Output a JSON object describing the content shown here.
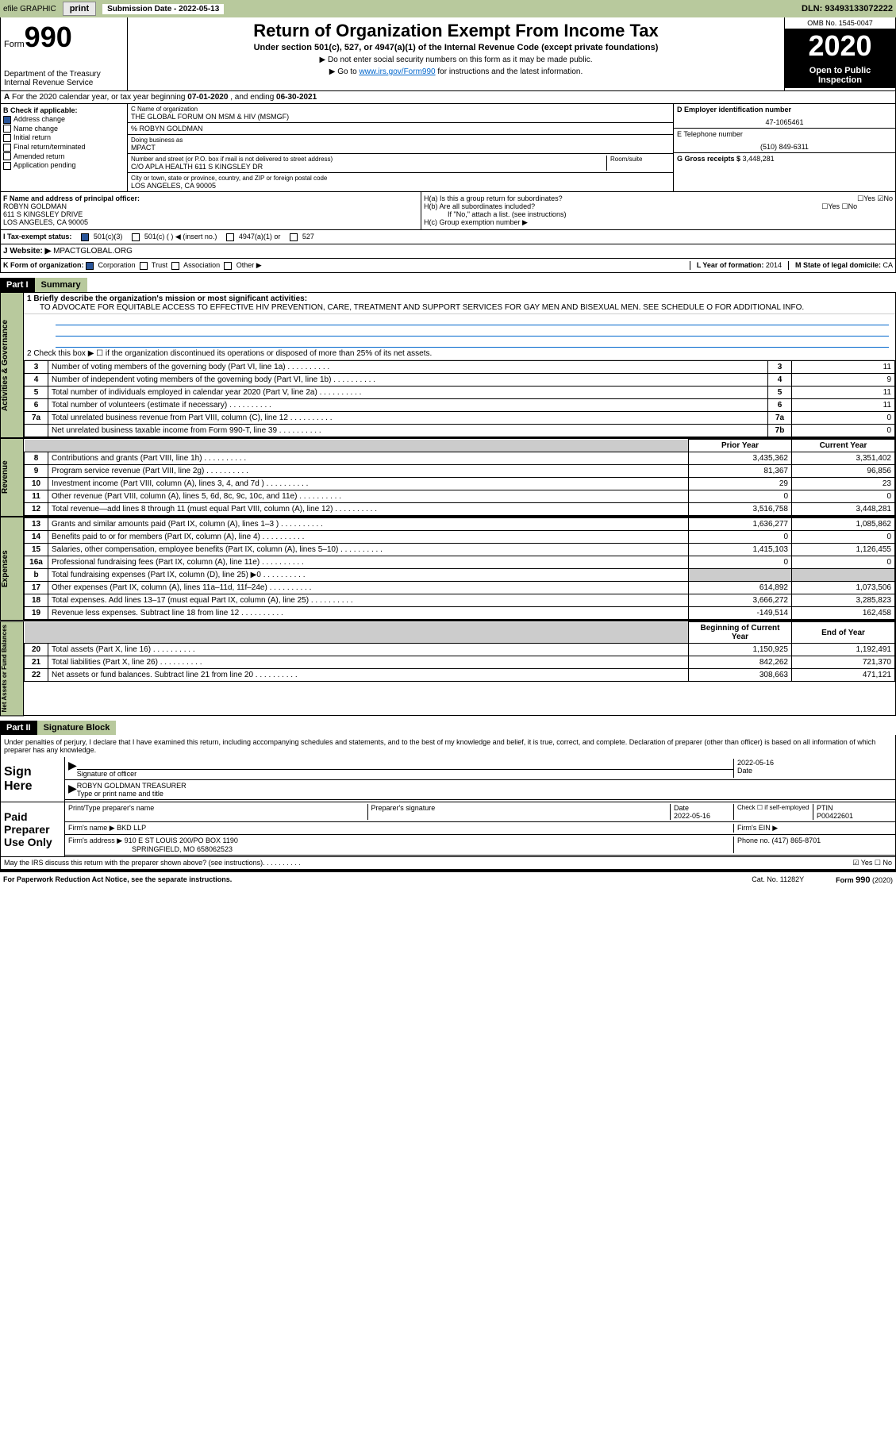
{
  "topbar": {
    "efile": "efile GRAPHIC",
    "print": "print",
    "sub_label": "Submission Date - ",
    "sub_date": "2022-05-13",
    "dln": "DLN: 93493133072222"
  },
  "header": {
    "form_word": "Form",
    "form_num": "990",
    "dept": "Department of the Treasury\nInternal Revenue Service",
    "title": "Return of Organization Exempt From Income Tax",
    "subtitle": "Under section 501(c), 527, or 4947(a)(1) of the Internal Revenue Code (except private foundations)",
    "instr1": "▶ Do not enter social security numbers on this form as it may be made public.",
    "instr2": "▶ Go to ",
    "instr2_link": "www.irs.gov/Form990",
    "instr2_rest": " for instructions and the latest information.",
    "omb": "OMB No. 1545-0047",
    "year": "2020",
    "inspect": "Open to Public Inspection"
  },
  "rowA": {
    "prefix": "A",
    "text": "For the 2020 calendar year, or tax year beginning ",
    "begin": "07-01-2020",
    "mid": " , and ending ",
    "end": "06-30-2021"
  },
  "colB": {
    "title": "B Check if applicable:",
    "opts": [
      "Address change",
      "Name change",
      "Initial return",
      "Final return/terminated",
      "Amended return",
      "Application pending"
    ],
    "checked": [
      true,
      false,
      false,
      false,
      false,
      false
    ]
  },
  "colC": {
    "name_label": "C Name of organization",
    "name": "THE GLOBAL FORUM ON MSM & HIV (MSMGF)",
    "care_of": "% ROBYN GOLDMAN",
    "dba_label": "Doing business as",
    "dba": "MPACT",
    "addr_label": "Number and street (or P.O. box if mail is not delivered to street address)",
    "room_label": "Room/suite",
    "addr": "C/O APLA HEALTH 611 S KINGSLEY DR",
    "city_label": "City or town, state or province, country, and ZIP or foreign postal code",
    "city": "LOS ANGELES, CA  90005"
  },
  "colD": {
    "ein_label": "D Employer identification number",
    "ein": "47-1065461",
    "tel_label": "E Telephone number",
    "tel": "(510) 849-6311",
    "gross_label": "G Gross receipts $ ",
    "gross": "3,448,281"
  },
  "rowF": {
    "label": "F Name and address of principal officer:",
    "name": "ROBYN GOLDMAN",
    "addr1": "611 S KINGSLEY DRIVE",
    "addr2": "LOS ANGELES, CA  90005"
  },
  "rowH": {
    "ha": "H(a)  Is this a group return for subordinates?",
    "hb": "H(b)  Are all subordinates included?",
    "hb_note": "If \"No,\" attach a list. (see instructions)",
    "hc": "H(c)  Group exemption number ▶",
    "yes": "Yes",
    "no": "No"
  },
  "rowI": {
    "label": "I   Tax-exempt status:",
    "opts": [
      "501(c)(3)",
      "501(c) (  ) ◀ (insert no.)",
      "4947(a)(1) or",
      "527"
    ]
  },
  "rowJ": {
    "label": "J   Website: ▶  ",
    "val": "MPACTGLOBAL.ORG"
  },
  "rowK": {
    "label": "K Form of organization:",
    "opts": [
      "Corporation",
      "Trust",
      "Association",
      "Other ▶"
    ],
    "L_label": "L Year of formation: ",
    "L_val": "2014",
    "M_label": "M State of legal domicile: ",
    "M_val": "CA"
  },
  "part1": {
    "hdr": "Part I",
    "title": "Summary",
    "side1": "Activities & Governance",
    "line1": "1  Briefly describe the organization's mission or most significant activities:",
    "mission": "TO ADVOCATE FOR EQUITABLE ACCESS TO EFFECTIVE HIV PREVENTION, CARE, TREATMENT AND SUPPORT SERVICES FOR GAY MEN AND BISEXUAL MEN. SEE SCHEDULE O FOR ADDITIONAL INFO.",
    "line2": "2   Check this box ▶ ☐  if the organization discontinued its operations or disposed of more than 25% of its net assets.",
    "rows_gov": [
      {
        "n": "3",
        "d": "Number of voting members of the governing body (Part VI, line 1a)",
        "k": "3",
        "v": "11"
      },
      {
        "n": "4",
        "d": "Number of independent voting members of the governing body (Part VI, line 1b)",
        "k": "4",
        "v": "9"
      },
      {
        "n": "5",
        "d": "Total number of individuals employed in calendar year 2020 (Part V, line 2a)",
        "k": "5",
        "v": "11"
      },
      {
        "n": "6",
        "d": "Total number of volunteers (estimate if necessary)",
        "k": "6",
        "v": "11"
      },
      {
        "n": "7a",
        "d": "Total unrelated business revenue from Part VIII, column (C), line 12",
        "k": "7a",
        "v": "0"
      },
      {
        "n": "",
        "d": "Net unrelated business taxable income from Form 990-T, line 39",
        "k": "7b",
        "v": "0"
      }
    ],
    "side2": "Revenue",
    "col_prior": "Prior Year",
    "col_curr": "Current Year",
    "rows_rev": [
      {
        "n": "8",
        "d": "Contributions and grants (Part VIII, line 1h)",
        "p": "3,435,362",
        "c": "3,351,402"
      },
      {
        "n": "9",
        "d": "Program service revenue (Part VIII, line 2g)",
        "p": "81,367",
        "c": "96,856"
      },
      {
        "n": "10",
        "d": "Investment income (Part VIII, column (A), lines 3, 4, and 7d )",
        "p": "29",
        "c": "23"
      },
      {
        "n": "11",
        "d": "Other revenue (Part VIII, column (A), lines 5, 6d, 8c, 9c, 10c, and 11e)",
        "p": "0",
        "c": "0"
      },
      {
        "n": "12",
        "d": "Total revenue—add lines 8 through 11 (must equal Part VIII, column (A), line 12)",
        "p": "3,516,758",
        "c": "3,448,281"
      }
    ],
    "side3": "Expenses",
    "rows_exp": [
      {
        "n": "13",
        "d": "Grants and similar amounts paid (Part IX, column (A), lines 1–3 )",
        "p": "1,636,277",
        "c": "1,085,862"
      },
      {
        "n": "14",
        "d": "Benefits paid to or for members (Part IX, column (A), line 4)",
        "p": "0",
        "c": "0"
      },
      {
        "n": "15",
        "d": "Salaries, other compensation, employee benefits (Part IX, column (A), lines 5–10)",
        "p": "1,415,103",
        "c": "1,126,455"
      },
      {
        "n": "16a",
        "d": "Professional fundraising fees (Part IX, column (A), line 11e)",
        "p": "0",
        "c": "0"
      },
      {
        "n": "b",
        "d": "Total fundraising expenses (Part IX, column (D), line 25) ▶0",
        "p": "",
        "c": "",
        "grey": true
      },
      {
        "n": "17",
        "d": "Other expenses (Part IX, column (A), lines 11a–11d, 11f–24e)",
        "p": "614,892",
        "c": "1,073,506"
      },
      {
        "n": "18",
        "d": "Total expenses. Add lines 13–17 (must equal Part IX, column (A), line 25)",
        "p": "3,666,272",
        "c": "3,285,823"
      },
      {
        "n": "19",
        "d": "Revenue less expenses. Subtract line 18 from line 12",
        "p": "-149,514",
        "c": "162,458"
      }
    ],
    "side4": "Net Assets or Fund Balances",
    "col_begin": "Beginning of Current Year",
    "col_end": "End of Year",
    "rows_net": [
      {
        "n": "20",
        "d": "Total assets (Part X, line 16)",
        "p": "1,150,925",
        "c": "1,192,491"
      },
      {
        "n": "21",
        "d": "Total liabilities (Part X, line 26)",
        "p": "842,262",
        "c": "721,370"
      },
      {
        "n": "22",
        "d": "Net assets or fund balances. Subtract line 21 from line 20",
        "p": "308,663",
        "c": "471,121"
      }
    ]
  },
  "part2": {
    "hdr": "Part II",
    "title": "Signature Block",
    "decl": "Under penalties of perjury, I declare that I have examined this return, including accompanying schedules and statements, and to the best of my knowledge and belief, it is true, correct, and complete. Declaration of preparer (other than officer) is based on all information of which preparer has any knowledge.",
    "sign_here": "Sign Here",
    "sig_officer": "Signature of officer",
    "sig_date": "2022-05-16",
    "date_lbl": "Date",
    "officer_name": "ROBYN GOLDMAN  TREASURER",
    "type_name": "Type or print name and title",
    "paid": "Paid Preparer Use Only",
    "prep_name_lbl": "Print/Type preparer's name",
    "prep_sig_lbl": "Preparer's signature",
    "prep_date_lbl": "Date",
    "prep_date": "2022-05-16",
    "check_if": "Check ☐ if self-employed",
    "ptin_lbl": "PTIN",
    "ptin": "P00422601",
    "firm_name_lbl": "Firm's name   ▶ ",
    "firm_name": "BKD LLP",
    "firm_ein_lbl": "Firm's EIN ▶",
    "firm_addr_lbl": "Firm's address ▶ ",
    "firm_addr": "910 E ST LOUIS 200/PO BOX 1190",
    "firm_city": "SPRINGFIELD, MO  658062523",
    "firm_phone_lbl": "Phone no. ",
    "firm_phone": "(417) 865-8701",
    "discuss": "May the IRS discuss this return with the preparer shown above? (see instructions)",
    "yes": "Yes",
    "no": "No"
  },
  "footer": {
    "left": "For Paperwork Reduction Act Notice, see the separate instructions.",
    "mid": "Cat. No. 11282Y",
    "right": "Form 990 (2020)"
  }
}
